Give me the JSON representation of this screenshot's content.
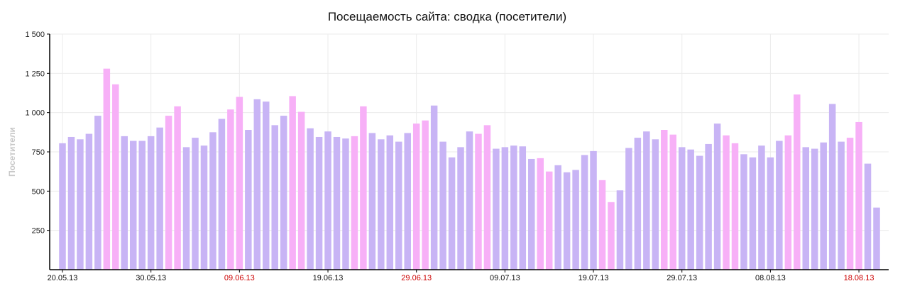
{
  "chart_data": {
    "type": "bar",
    "title": "Посещаемость сайта: сводка (посетители)",
    "ylabel": "Посетители",
    "xlabel": "",
    "ylim": [
      0,
      1500
    ],
    "yticks": [
      250,
      500,
      750,
      1000,
      1250,
      1500
    ],
    "ytick_labels": [
      "250",
      "500",
      "750",
      "1 000",
      "1 250",
      "1 500"
    ],
    "grid": true,
    "legend": "none",
    "start_date": "20.05.13",
    "x_ticks": [
      {
        "index": 0,
        "label": "20.05.13",
        "weekend": false
      },
      {
        "index": 10,
        "label": "30.05.13",
        "weekend": false
      },
      {
        "index": 20,
        "label": "09.06.13",
        "weekend": true
      },
      {
        "index": 30,
        "label": "19.06.13",
        "weekend": false
      },
      {
        "index": 40,
        "label": "29.06.13",
        "weekend": true
      },
      {
        "index": 50,
        "label": "09.07.13",
        "weekend": false
      },
      {
        "index": 60,
        "label": "19.07.13",
        "weekend": false
      },
      {
        "index": 70,
        "label": "29.07.13",
        "weekend": false
      },
      {
        "index": 80,
        "label": "08.08.13",
        "weekend": false
      },
      {
        "index": 90,
        "label": "18.08.13",
        "weekend": true
      }
    ],
    "values": [
      805,
      845,
      830,
      865,
      980,
      1280,
      1180,
      850,
      820,
      820,
      850,
      905,
      980,
      1040,
      780,
      840,
      790,
      875,
      960,
      1020,
      1100,
      890,
      1085,
      1070,
      920,
      980,
      1105,
      1005,
      900,
      845,
      880,
      845,
      835,
      850,
      1040,
      870,
      830,
      855,
      815,
      870,
      930,
      950,
      1045,
      815,
      715,
      780,
      880,
      865,
      920,
      770,
      780,
      790,
      785,
      705,
      710,
      625,
      665,
      620,
      635,
      730,
      755,
      570,
      430,
      505,
      775,
      840,
      880,
      830,
      890,
      860,
      780,
      765,
      725,
      800,
      930,
      855,
      805,
      735,
      715,
      790,
      715,
      820,
      855,
      1115,
      780,
      770,
      810,
      1055,
      815,
      840,
      940,
      675,
      395
    ],
    "weekend": [
      false,
      false,
      false,
      false,
      false,
      true,
      true,
      false,
      false,
      false,
      false,
      false,
      true,
      true,
      false,
      false,
      false,
      false,
      false,
      true,
      true,
      false,
      false,
      false,
      false,
      false,
      true,
      true,
      false,
      false,
      false,
      false,
      false,
      true,
      true,
      false,
      false,
      false,
      false,
      false,
      true,
      true,
      false,
      false,
      false,
      false,
      false,
      true,
      true,
      false,
      false,
      false,
      false,
      false,
      true,
      true,
      false,
      false,
      false,
      false,
      false,
      true,
      true,
      false,
      false,
      false,
      false,
      false,
      true,
      true,
      false,
      false,
      false,
      false,
      false,
      true,
      true,
      false,
      false,
      false,
      false,
      false,
      true,
      true,
      false,
      false,
      false,
      false,
      false,
      true,
      true,
      false,
      false
    ],
    "colors": {
      "weekday": "#c8b4f5",
      "weekend": "#f7b0f7",
      "weekend_label": "#cc0000",
      "weekday_label": "#111111",
      "grid": "#ebebeb",
      "axis": "#000000"
    }
  }
}
